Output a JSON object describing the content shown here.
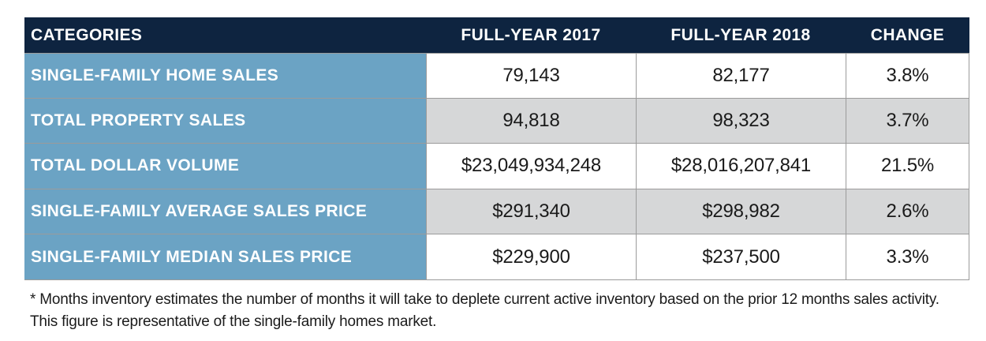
{
  "chart_data": {
    "type": "table",
    "columns": [
      "CATEGORIES",
      "FULL-YEAR 2017",
      "FULL-YEAR 2018",
      "CHANGE"
    ],
    "rows": [
      [
        "SINGLE-FAMILY HOME SALES",
        "79,143",
        "82,177",
        "3.8%"
      ],
      [
        "TOTAL PROPERTY SALES",
        "94,818",
        "98,323",
        "3.7%"
      ],
      [
        "TOTAL DOLLAR VOLUME",
        "$23,049,934,248",
        "$28,016,207,841",
        "21.5%"
      ],
      [
        "SINGLE-FAMILY AVERAGE SALES PRICE",
        "$291,340",
        "$298,982",
        "2.6%"
      ],
      [
        "SINGLE-FAMILY MEDIAN SALES PRICE",
        "$229,900",
        "$237,500",
        "3.3%"
      ]
    ],
    "layout": {
      "striped_row_indices": [
        1,
        3
      ],
      "legend": "none",
      "grid": "cell-borders"
    },
    "colors": {
      "header_bg": "#0e2440",
      "label_bg": "#6ba3c4",
      "stripe_bg": "#d6d7d8",
      "row_bg": "#ffffff",
      "border": "#9b9b9b",
      "header_text": "#ffffff",
      "value_text": "#1a1a1a"
    }
  },
  "footnote": "* Months inventory estimates the number of months it will take to deplete current active inventory based on the prior 12 months sales activity. This figure is representative of the single-family homes market."
}
